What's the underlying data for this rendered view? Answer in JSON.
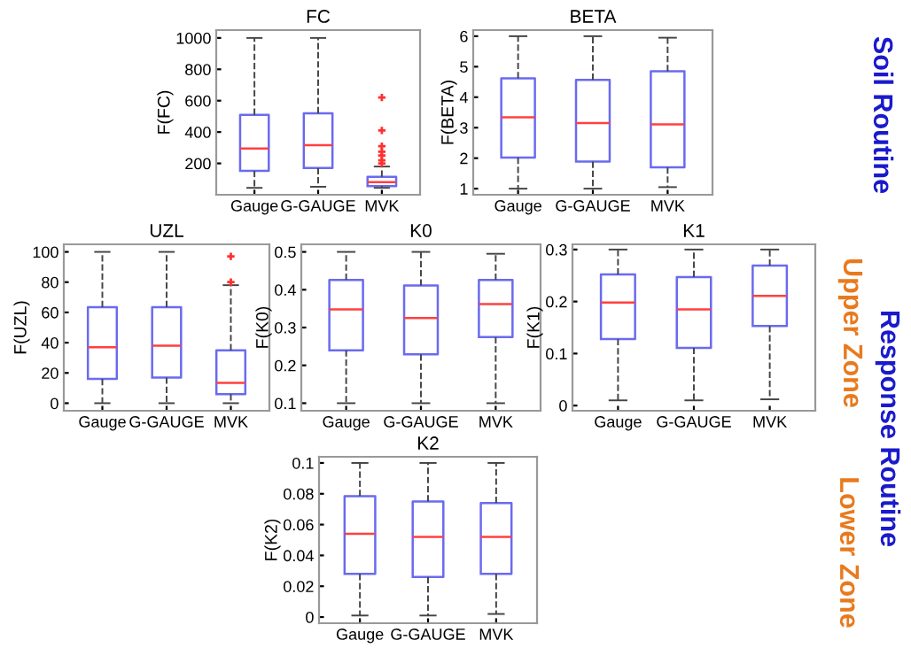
{
  "chart_data": [
    {
      "type": "box",
      "title": "FC",
      "ylabel": "F(FC)",
      "categories": [
        "Gauge",
        "G-GAUGE",
        "MVK"
      ],
      "color": "#6a6af0",
      "ylim": [
        0,
        1050
      ],
      "yticks": [
        200,
        400,
        600,
        800,
        1000
      ],
      "grid": false,
      "boxes": [
        {
          "low": 44,
          "q1": 153,
          "median": 295,
          "q3": 510,
          "high": 1000
        },
        {
          "low": 51,
          "q1": 171,
          "median": 316,
          "q3": 520,
          "high": 1000
        },
        {
          "low": 44,
          "q1": 55,
          "median": 80,
          "q3": 115,
          "high": 180,
          "outliers": [
            200,
            220,
            250,
            275,
            310,
            410,
            620
          ]
        }
      ]
    },
    {
      "type": "box",
      "title": "BETA",
      "ylabel": "F(BETA)",
      "categories": [
        "Gauge",
        "G-GAUGE",
        "MVK"
      ],
      "color": "#6a6af0",
      "ylim": [
        0.8,
        6.2
      ],
      "yticks": [
        1,
        2,
        3,
        4,
        5,
        6
      ],
      "grid": false,
      "boxes": [
        {
          "low": 1,
          "q1": 2.02,
          "median": 3.34,
          "q3": 4.62,
          "high": 6
        },
        {
          "low": 1,
          "q1": 1.89,
          "median": 3.15,
          "q3": 4.57,
          "high": 6
        },
        {
          "low": 1.05,
          "q1": 1.7,
          "median": 3.11,
          "q3": 4.85,
          "high": 5.95
        }
      ]
    },
    {
      "type": "box",
      "title": "UZL",
      "ylabel": "F(UZL)",
      "categories": [
        "Gauge",
        "G-GAUGE",
        "MVK"
      ],
      "color": "#6a6af0",
      "ylim": [
        -5,
        105
      ],
      "yticks": [
        0,
        20,
        40,
        60,
        80,
        100
      ],
      "grid": false,
      "boxes": [
        {
          "low": 0,
          "q1": 16,
          "median": 37,
          "q3": 63.5,
          "high": 100
        },
        {
          "low": 0,
          "q1": 17,
          "median": 38,
          "q3": 63.5,
          "high": 100
        },
        {
          "low": 0,
          "q1": 6,
          "median": 13.5,
          "q3": 35,
          "high": 78,
          "outliers": [
            80,
            97
          ]
        }
      ]
    },
    {
      "type": "box",
      "title": "K0",
      "ylabel": "F(K0)",
      "categories": [
        "Gauge",
        "G-GAUGE",
        "MVK"
      ],
      "color": "#6a6af0",
      "ylim": [
        0.08,
        0.52
      ],
      "yticks": [
        0.1,
        0.2,
        0.3,
        0.4,
        0.5
      ],
      "grid": false,
      "boxes": [
        {
          "low": 0.1,
          "q1": 0.24,
          "median": 0.348,
          "q3": 0.426,
          "high": 0.5
        },
        {
          "low": 0.1,
          "q1": 0.229,
          "median": 0.325,
          "q3": 0.411,
          "high": 0.5
        },
        {
          "low": 0.1,
          "q1": 0.275,
          "median": 0.362,
          "q3": 0.426,
          "high": 0.495
        }
      ]
    },
    {
      "type": "box",
      "title": "K1",
      "ylabel": "F(K1)",
      "categories": [
        "Gauge",
        "G-GAUGE",
        "MVK"
      ],
      "color": "#6a6af0",
      "ylim": [
        -0.01,
        0.31
      ],
      "yticks": [
        0,
        0.1,
        0.2,
        0.3
      ],
      "grid": false,
      "boxes": [
        {
          "low": 0.01,
          "q1": 0.128,
          "median": 0.198,
          "q3": 0.252,
          "high": 0.3
        },
        {
          "low": 0.01,
          "q1": 0.111,
          "median": 0.185,
          "q3": 0.247,
          "high": 0.3
        },
        {
          "low": 0.012,
          "q1": 0.153,
          "median": 0.211,
          "q3": 0.269,
          "high": 0.3
        }
      ]
    },
    {
      "type": "box",
      "title": "K2",
      "ylabel": "F(K2)",
      "categories": [
        "Gauge",
        "G-GAUGE",
        "MVK"
      ],
      "color": "#6a6af0",
      "ylim": [
        -0.004,
        0.104
      ],
      "yticks": [
        0,
        0.02,
        0.04,
        0.06,
        0.08,
        0.1
      ],
      "grid": false,
      "boxes": [
        {
          "low": 0.001,
          "q1": 0.028,
          "median": 0.054,
          "q3": 0.0785,
          "high": 0.1
        },
        {
          "low": 0.001,
          "q1": 0.026,
          "median": 0.052,
          "q3": 0.075,
          "high": 0.1
        },
        {
          "low": 0.002,
          "q1": 0.028,
          "median": 0.052,
          "q3": 0.074,
          "high": 0.1
        }
      ]
    },
    {
      "type": "other",
      "annotations": [
        "Soil Routine",
        "Upper Zone",
        "Response Routine",
        "Lower Zone"
      ],
      "colors": [
        "#1a1acc",
        "#e87a1e",
        "#1a1acc",
        "#e87a1e"
      ]
    }
  ]
}
